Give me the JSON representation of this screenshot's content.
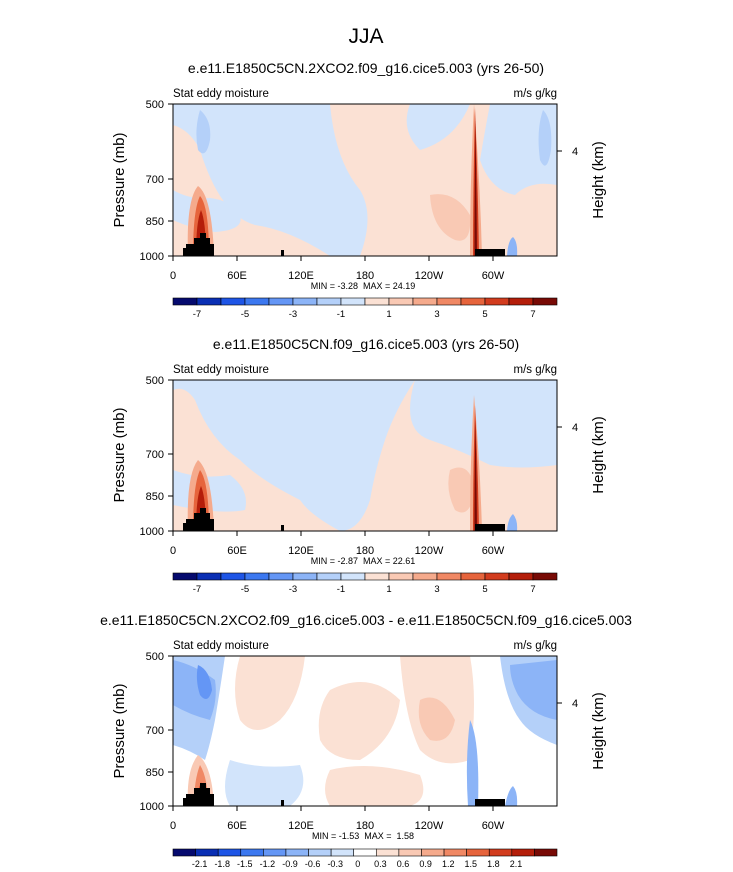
{
  "main_title": "JJA",
  "chart_data": [
    {
      "type": "heatmap",
      "title": "e.e11.E1850C5CN.2XCO2.f09_g16.cice5.003 (yrs 26-50)",
      "left_label": "Stat eddy moisture",
      "right_label": "m/s g/kg",
      "ylabel": "Pressure (mb)",
      "ylabel_right": "Height (km)",
      "y_ticks": [
        "500",
        "700",
        "850",
        "1000"
      ],
      "y_ticks_right": [
        "4"
      ],
      "x_ticks": [
        "0",
        "60E",
        "120E",
        "180",
        "120W",
        "60W"
      ],
      "stats": "MIN = -3.28  MAX = 24.19",
      "colorbar_labels": [
        "-7",
        "-5",
        "-3",
        "-1",
        "1",
        "3",
        "5",
        "7"
      ],
      "colorbar_range": [
        -8,
        8
      ],
      "min": -3.28,
      "max": 24.19
    },
    {
      "type": "heatmap",
      "title": "e.e11.E1850C5CN.f09_g16.cice5.003 (yrs 26-50)",
      "left_label": "Stat eddy moisture",
      "right_label": "m/s g/kg",
      "ylabel": "Pressure (mb)",
      "ylabel_right": "Height (km)",
      "y_ticks": [
        "500",
        "700",
        "850",
        "1000"
      ],
      "y_ticks_right": [
        "4"
      ],
      "x_ticks": [
        "0",
        "60E",
        "120E",
        "180",
        "120W",
        "60W"
      ],
      "stats": "MIN = -2.87  MAX = 22.61",
      "colorbar_labels": [
        "-7",
        "-5",
        "-3",
        "-1",
        "1",
        "3",
        "5",
        "7"
      ],
      "colorbar_range": [
        -8,
        8
      ],
      "min": -2.87,
      "max": 22.61
    },
    {
      "type": "heatmap",
      "title": "e.e11.E1850C5CN.2XCO2.f09_g16.cice5.003 - e.e11.E1850C5CN.f09_g16.cice5.003",
      "left_label": "Stat eddy moisture",
      "right_label": "m/s g/kg",
      "ylabel": "Pressure (mb)",
      "ylabel_right": "Height (km)",
      "y_ticks": [
        "500",
        "700",
        "850",
        "1000"
      ],
      "y_ticks_right": [
        "4"
      ],
      "x_ticks": [
        "0",
        "60E",
        "120E",
        "180",
        "120W",
        "60W"
      ],
      "stats": "MIN = -1.53  MAX =  1.58",
      "colorbar_labels": [
        "-2.1",
        "-1.8",
        "-1.5",
        "-1.2",
        "-0.9",
        "-0.6",
        "-0.3",
        "0",
        "0.3",
        "0.6",
        "0.9",
        "1.2",
        "1.5",
        "1.8",
        "2.1"
      ],
      "colorbar_range": [
        -2.4,
        2.4
      ],
      "min": -1.53,
      "max": 1.58
    }
  ],
  "colors": {
    "palette16": [
      "#050a6e",
      "#0a2fb4",
      "#1e55e6",
      "#3c78f0",
      "#6496f5",
      "#8cb4f7",
      "#b4d0f9",
      "#d2e4fb",
      "#fbe1d4",
      "#f9c9b4",
      "#f5aa8c",
      "#f08864",
      "#e6643c",
      "#d23c1e",
      "#b41e0a",
      "#780a05"
    ],
    "palette17": [
      "#050a6e",
      "#0a2fb4",
      "#1e55e6",
      "#3c78f0",
      "#6496f5",
      "#8cb4f7",
      "#b4d0f9",
      "#d2e4fb",
      "#ffffff",
      "#fbe1d4",
      "#f9c9b4",
      "#f5aa8c",
      "#f08864",
      "#e6643c",
      "#d23c1e",
      "#b41e0a",
      "#780a05"
    ],
    "topography": "#000000"
  }
}
